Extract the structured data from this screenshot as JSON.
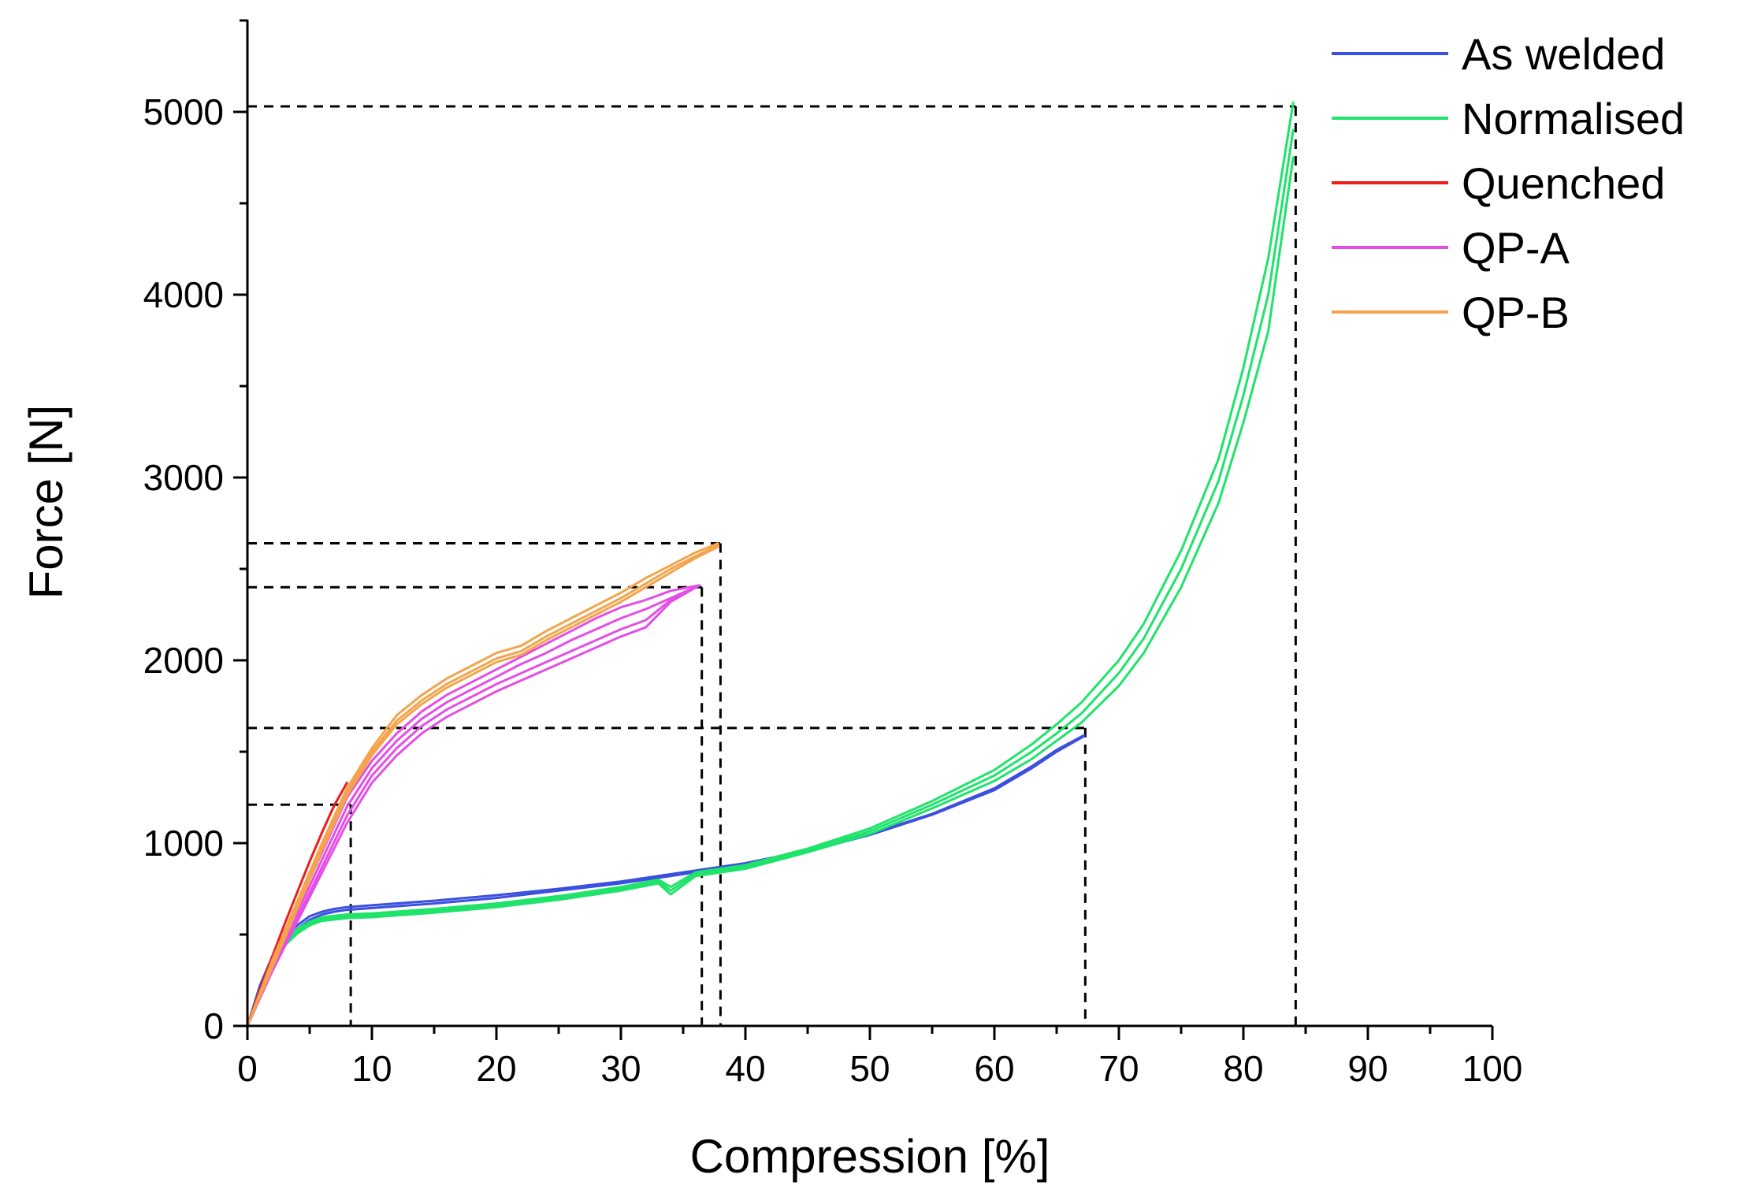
{
  "chart_data": {
    "type": "line",
    "title": "",
    "xlabel": "Compression [%]",
    "ylabel": "Force [N]",
    "xlim": [
      0,
      100
    ],
    "ylim": [
      0,
      5500
    ],
    "xticks": [
      0,
      10,
      20,
      30,
      40,
      50,
      60,
      70,
      80,
      90,
      100
    ],
    "yticks": [
      0,
      1000,
      2000,
      3000,
      4000,
      5000
    ],
    "grid": false,
    "legend_position": "top-right",
    "series": [
      {
        "name": "As welded",
        "color": "#3b4fe0",
        "curves": [
          {
            "x": [
              0,
              1,
              2,
              3,
              4,
              5,
              6,
              7,
              8,
              10,
              15,
              20,
              25,
              30,
              35,
              40,
              45,
              50,
              55,
              60,
              63,
              65,
              67.2
            ],
            "y": [
              0,
              220,
              380,
              480,
              550,
              600,
              625,
              640,
              650,
              660,
              685,
              715,
              750,
              790,
              840,
              890,
              960,
              1050,
              1160,
              1300,
              1420,
              1510,
              1590
            ]
          },
          {
            "x": [
              0,
              1,
              2,
              3,
              4,
              5,
              6,
              7,
              8,
              10,
              15,
              20,
              25,
              30,
              35,
              40,
              45,
              50,
              55,
              60,
              63,
              65,
              67.2
            ],
            "y": [
              0,
              200,
              360,
              460,
              530,
              580,
              610,
              625,
              635,
              645,
              670,
              700,
              740,
              780,
              830,
              885,
              955,
              1045,
              1155,
              1290,
              1410,
              1500,
              1585
            ]
          }
        ]
      },
      {
        "name": "Normalised",
        "color": "#1fe36a",
        "curves": [
          {
            "x": [
              0,
              1,
              2,
              3,
              4,
              5,
              6,
              8,
              10,
              15,
              20,
              25,
              30,
              33,
              34,
              36,
              40,
              45,
              50,
              55,
              60,
              63,
              65,
              67,
              70,
              72,
              75,
              78,
              80,
              82,
              84
            ],
            "y": [
              0,
              200,
              360,
              460,
              530,
              570,
              595,
              610,
              615,
              640,
              670,
              710,
              760,
              800,
              760,
              840,
              880,
              970,
              1080,
              1230,
              1400,
              1540,
              1650,
              1770,
              2000,
              2200,
              2600,
              3100,
              3600,
              4200,
              5050
            ]
          },
          {
            "x": [
              0,
              1,
              2,
              3,
              4,
              5,
              6,
              8,
              10,
              15,
              20,
              25,
              30,
              33,
              34,
              36,
              40,
              45,
              50,
              55,
              60,
              63,
              65,
              67,
              70,
              72,
              75,
              78,
              80,
              82,
              84
            ],
            "y": [
              0,
              190,
              350,
              450,
              515,
              560,
              585,
              600,
              605,
              630,
              660,
              700,
              750,
              790,
              740,
              830,
              870,
              960,
              1065,
              1210,
              1370,
              1500,
              1600,
              1710,
              1930,
              2120,
              2500,
              2980,
              3450,
              4000,
              4900
            ]
          },
          {
            "x": [
              0,
              1,
              2,
              3,
              4,
              5,
              6,
              8,
              10,
              15,
              20,
              25,
              30,
              33,
              34,
              36,
              40,
              45,
              50,
              55,
              60,
              63,
              65,
              67,
              70,
              72,
              75,
              78,
              80,
              82,
              84
            ],
            "y": [
              0,
              180,
              340,
              440,
              505,
              550,
              575,
              590,
              595,
              620,
              650,
              690,
              740,
              780,
              720,
              820,
              860,
              950,
              1050,
              1190,
              1340,
              1460,
              1560,
              1660,
              1860,
              2040,
              2400,
              2860,
              3300,
              3800,
              4750
            ]
          }
        ]
      },
      {
        "name": "Quenched",
        "color": "#ee1c1c",
        "curves": [
          {
            "x": [
              0,
              1,
              2,
              3,
              4,
              5,
              6,
              7,
              8
            ],
            "y": [
              0,
              200,
              380,
              560,
              730,
              900,
              1060,
              1210,
              1330
            ]
          }
        ]
      },
      {
        "name": "QP-A",
        "color": "#e44ee6",
        "curves": [
          {
            "x": [
              0,
              2,
              4,
              6,
              8,
              10,
              12,
              14,
              16,
              18,
              20,
              22,
              24,
              26,
              28,
              30,
              32,
              34,
              36.3
            ],
            "y": [
              0,
              350,
              650,
              950,
              1250,
              1450,
              1600,
              1720,
              1810,
              1880,
              1950,
              2020,
              2090,
              2160,
              2230,
              2290,
              2330,
              2380,
              2410
            ]
          },
          {
            "x": [
              0,
              2,
              4,
              6,
              8,
              10,
              12,
              14,
              16,
              18,
              20,
              22,
              24,
              26,
              28,
              30,
              32,
              34,
              36.3
            ],
            "y": [
              0,
              330,
              620,
              910,
              1200,
              1410,
              1560,
              1680,
              1770,
              1840,
              1910,
              1980,
              2040,
              2110,
              2170,
              2230,
              2280,
              2340,
              2410
            ]
          },
          {
            "x": [
              0,
              2,
              4,
              6,
              8,
              10,
              12,
              14,
              16,
              18,
              20,
              22,
              24,
              26,
              28,
              30,
              32,
              34,
              36.3
            ],
            "y": [
              0,
              310,
              590,
              870,
              1150,
              1370,
              1520,
              1640,
              1730,
              1800,
              1870,
              1930,
              1990,
              2050,
              2110,
              2170,
              2220,
              2330,
              2410
            ]
          },
          {
            "x": [
              0,
              2,
              4,
              6,
              8,
              10,
              12,
              14,
              16,
              18,
              20,
              22,
              24,
              26,
              28,
              30,
              32,
              34,
              36.3
            ],
            "y": [
              0,
              300,
              570,
              840,
              1110,
              1330,
              1480,
              1600,
              1690,
              1760,
              1830,
              1890,
              1950,
              2010,
              2070,
              2130,
              2180,
              2320,
              2410
            ]
          }
        ]
      },
      {
        "name": "QP-B",
        "color": "#f3a44c",
        "curves": [
          {
            "x": [
              0,
              2,
              4,
              6,
              8,
              10,
              12,
              14,
              16,
              18,
              20,
              22,
              24,
              26,
              28,
              30,
              32,
              34,
              36,
              37.8
            ],
            "y": [
              0,
              360,
              680,
              1000,
              1300,
              1520,
              1700,
              1810,
              1900,
              1970,
              2040,
              2080,
              2160,
              2230,
              2300,
              2370,
              2450,
              2520,
              2590,
              2640
            ]
          },
          {
            "x": [
              0,
              2,
              4,
              6,
              8,
              10,
              12,
              14,
              16,
              18,
              20,
              22,
              24,
              26,
              28,
              30,
              32,
              34,
              36,
              37.8
            ],
            "y": [
              0,
              340,
              660,
              980,
              1280,
              1500,
              1670,
              1780,
              1870,
              1940,
              2010,
              2050,
              2130,
              2200,
              2270,
              2340,
              2420,
              2500,
              2570,
              2630
            ]
          },
          {
            "x": [
              0,
              2,
              4,
              6,
              8,
              10,
              12,
              14,
              16,
              18,
              20,
              22,
              24,
              26,
              28,
              30,
              32,
              34,
              36,
              37.8
            ],
            "y": [
              0,
              320,
              640,
              960,
              1260,
              1480,
              1650,
              1760,
              1850,
              1920,
              1990,
              2030,
              2110,
              2180,
              2250,
              2320,
              2400,
              2480,
              2560,
              2620
            ]
          }
        ]
      }
    ],
    "reference_lines": [
      {
        "name": "quenched-max",
        "x": 8.3,
        "y": 1210
      },
      {
        "name": "qp-a-max",
        "x": 36.5,
        "y": 2400
      },
      {
        "name": "qp-b-max",
        "x": 38,
        "y": 2640
      },
      {
        "name": "as-welded-max",
        "x": 67.3,
        "y": 1630
      },
      {
        "name": "normalised-max",
        "x": 84.2,
        "y": 5030
      }
    ]
  }
}
